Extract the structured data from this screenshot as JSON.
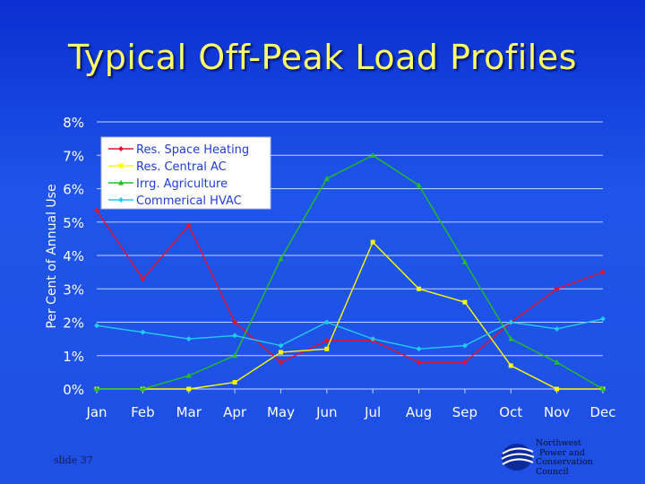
{
  "slide": {
    "title": "Typical Off-Peak Load Profiles",
    "slide_number": "slide 37",
    "org_lines": [
      "Northwest",
      "Power and",
      "Conservation",
      "Council"
    ]
  },
  "chart_data": {
    "type": "line",
    "title": "",
    "xlabel": "",
    "ylabel": "Per Cent of Annual Use",
    "categories": [
      "Jan",
      "Feb",
      "Mar",
      "Apr",
      "May",
      "Jun",
      "Jul",
      "Aug",
      "Sep",
      "Oct",
      "Nov",
      "Dec"
    ],
    "ylim": [
      0,
      8
    ],
    "yticks": [
      "0%",
      "1%",
      "2%",
      "3%",
      "4%",
      "5%",
      "6%",
      "7%",
      "8%"
    ],
    "grid": "horizontal",
    "legend_position": "top-left",
    "series": [
      {
        "name": "Res. Space Heating",
        "color": "#e8102a",
        "values": [
          5.35,
          3.3,
          4.9,
          2.0,
          0.8,
          1.45,
          1.45,
          0.8,
          0.8,
          2.0,
          3.0,
          3.5
        ]
      },
      {
        "name": "Res. Central AC",
        "color": "#ffff00",
        "values": [
          0.0,
          0.0,
          0.0,
          0.2,
          1.1,
          1.2,
          4.4,
          3.0,
          2.6,
          0.7,
          0.0,
          0.0
        ]
      },
      {
        "name": "Irrg. Agriculture",
        "color": "#22c022",
        "values": [
          0.0,
          0.0,
          0.4,
          1.0,
          3.9,
          6.3,
          7.0,
          6.1,
          3.8,
          1.5,
          0.8,
          0.0
        ]
      },
      {
        "name": "Commerical HVAC",
        "color": "#22ccf0",
        "values": [
          1.9,
          1.7,
          1.5,
          1.6,
          1.3,
          2.0,
          1.5,
          1.2,
          1.3,
          2.0,
          1.8,
          2.1
        ]
      }
    ]
  }
}
